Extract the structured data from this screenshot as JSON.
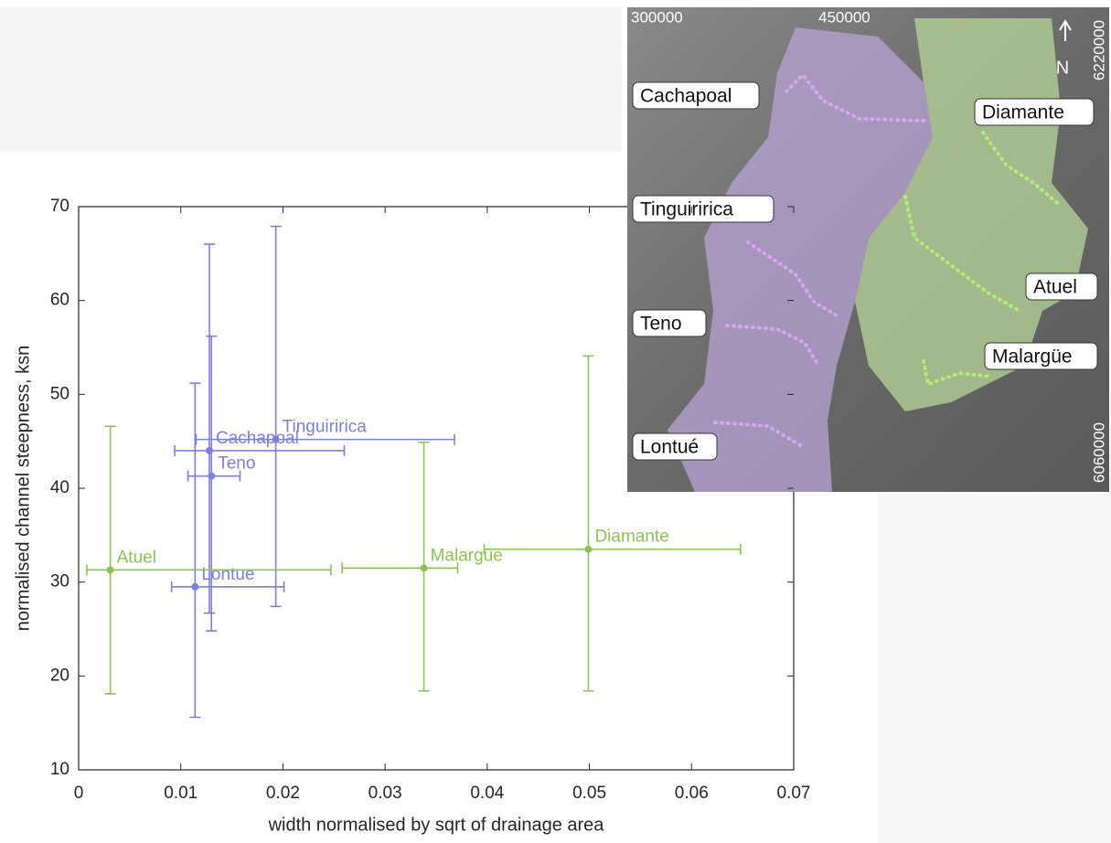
{
  "chart_data": {
    "type": "scatter",
    "xlabel": "width normalised by sqrt of drainage area",
    "ylabel": "normalised channel steepness, ksn",
    "xlim": [
      0,
      0.07
    ],
    "xticks": [
      0,
      0.01,
      0.02,
      0.03,
      0.04,
      0.05,
      0.06,
      0.07
    ],
    "ylim": [
      10,
      70
    ],
    "yticks": [
      10,
      20,
      30,
      40,
      50,
      60,
      70
    ],
    "series": [
      {
        "color": "#7c80dc",
        "point_labels": [
          "Cachapoal",
          "Teno",
          "Tinguiririca",
          "Lontue"
        ],
        "x": [
          0.0128,
          0.013,
          0.0193,
          0.0114
        ],
        "values": [
          44.0,
          41.3,
          45.2,
          29.5
        ],
        "x_low": [
          0.0094,
          0.0107,
          0.0115,
          0.0091
        ],
        "x_high": [
          0.026,
          0.0158,
          0.0368,
          0.0201
        ],
        "y_low": [
          26.7,
          24.8,
          27.4,
          15.6
        ],
        "y_high": [
          66.0,
          56.2,
          67.9,
          51.2
        ]
      },
      {
        "color": "#8cc454",
        "point_labels": [
          "Atuel",
          "Malargüe",
          "Diamante"
        ],
        "x": [
          0.0031,
          0.0338,
          0.0499
        ],
        "values": [
          31.3,
          31.5,
          33.5
        ],
        "x_low": [
          0.0008,
          0.0258,
          0.0397
        ],
        "x_high": [
          0.0247,
          0.0371,
          0.0648
        ],
        "y_low": [
          18.1,
          18.4,
          18.4
        ],
        "y_high": [
          46.6,
          44.9,
          54.1
        ]
      }
    ]
  },
  "map": {
    "easting_labels": [
      "300000",
      "450000"
    ],
    "northing_labels": [
      "6220000",
      "6060000"
    ],
    "north": "N",
    "labels": [
      "Cachapoal",
      "Diamante",
      "Tinguiririca",
      "Atuel",
      "Teno",
      "Malargüe",
      "Lontué"
    ]
  }
}
